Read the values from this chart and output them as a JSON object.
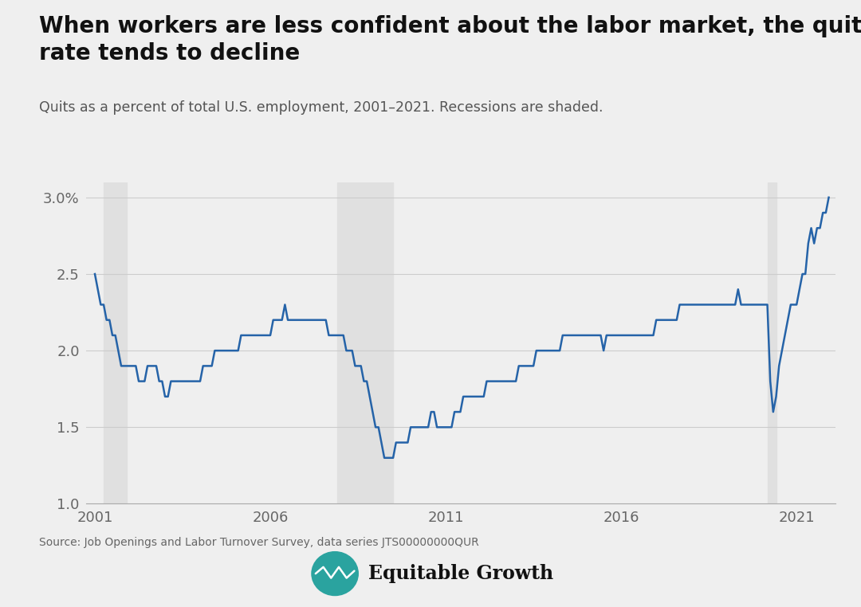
{
  "title": "When workers are less confident about the labor market, the quits\nrate tends to decline",
  "subtitle": "Quits as a percent of total U.S. employment, 2001–2021. Recessions are shaded.",
  "source": "Source: Job Openings and Labor Turnover Survey, data series JTS00000000QUR",
  "line_color": "#2563a8",
  "background_color": "#efefef",
  "recession_color": "#e0e0e0",
  "recessions": [
    {
      "start": 2001.25,
      "end": 2001.917
    },
    {
      "start": 2007.917,
      "end": 2009.5
    },
    {
      "start": 2020.167,
      "end": 2020.417
    }
  ],
  "ylim": [
    1.0,
    3.1
  ],
  "yticks": [
    1.0,
    1.5,
    2.0,
    2.5,
    3.0
  ],
  "ytick_labels": [
    "1.0",
    "1.5",
    "2.0",
    "2.5",
    "3.0%"
  ],
  "xlim": [
    2000.75,
    2022.1
  ],
  "xticks": [
    2001,
    2006,
    2011,
    2016,
    2021
  ],
  "data": {
    "dates": [
      2001.0,
      2001.083,
      2001.167,
      2001.25,
      2001.333,
      2001.417,
      2001.5,
      2001.583,
      2001.667,
      2001.75,
      2001.833,
      2001.917,
      2002.0,
      2002.083,
      2002.167,
      2002.25,
      2002.333,
      2002.417,
      2002.5,
      2002.583,
      2002.667,
      2002.75,
      2002.833,
      2002.917,
      2003.0,
      2003.083,
      2003.167,
      2003.25,
      2003.333,
      2003.417,
      2003.5,
      2003.583,
      2003.667,
      2003.75,
      2003.833,
      2003.917,
      2004.0,
      2004.083,
      2004.167,
      2004.25,
      2004.333,
      2004.417,
      2004.5,
      2004.583,
      2004.667,
      2004.75,
      2004.833,
      2004.917,
      2005.0,
      2005.083,
      2005.167,
      2005.25,
      2005.333,
      2005.417,
      2005.5,
      2005.583,
      2005.667,
      2005.75,
      2005.833,
      2005.917,
      2006.0,
      2006.083,
      2006.167,
      2006.25,
      2006.333,
      2006.417,
      2006.5,
      2006.583,
      2006.667,
      2006.75,
      2006.833,
      2006.917,
      2007.0,
      2007.083,
      2007.167,
      2007.25,
      2007.333,
      2007.417,
      2007.5,
      2007.583,
      2007.667,
      2007.75,
      2007.833,
      2007.917,
      2008.0,
      2008.083,
      2008.167,
      2008.25,
      2008.333,
      2008.417,
      2008.5,
      2008.583,
      2008.667,
      2008.75,
      2008.833,
      2008.917,
      2009.0,
      2009.083,
      2009.167,
      2009.25,
      2009.333,
      2009.417,
      2009.5,
      2009.583,
      2009.667,
      2009.75,
      2009.833,
      2009.917,
      2010.0,
      2010.083,
      2010.167,
      2010.25,
      2010.333,
      2010.417,
      2010.5,
      2010.583,
      2010.667,
      2010.75,
      2010.833,
      2010.917,
      2011.0,
      2011.083,
      2011.167,
      2011.25,
      2011.333,
      2011.417,
      2011.5,
      2011.583,
      2011.667,
      2011.75,
      2011.833,
      2011.917,
      2012.0,
      2012.083,
      2012.167,
      2012.25,
      2012.333,
      2012.417,
      2012.5,
      2012.583,
      2012.667,
      2012.75,
      2012.833,
      2012.917,
      2013.0,
      2013.083,
      2013.167,
      2013.25,
      2013.333,
      2013.417,
      2013.5,
      2013.583,
      2013.667,
      2013.75,
      2013.833,
      2013.917,
      2014.0,
      2014.083,
      2014.167,
      2014.25,
      2014.333,
      2014.417,
      2014.5,
      2014.583,
      2014.667,
      2014.75,
      2014.833,
      2014.917,
      2015.0,
      2015.083,
      2015.167,
      2015.25,
      2015.333,
      2015.417,
      2015.5,
      2015.583,
      2015.667,
      2015.75,
      2015.833,
      2015.917,
      2016.0,
      2016.083,
      2016.167,
      2016.25,
      2016.333,
      2016.417,
      2016.5,
      2016.583,
      2016.667,
      2016.75,
      2016.833,
      2016.917,
      2017.0,
      2017.083,
      2017.167,
      2017.25,
      2017.333,
      2017.417,
      2017.5,
      2017.583,
      2017.667,
      2017.75,
      2017.833,
      2017.917,
      2018.0,
      2018.083,
      2018.167,
      2018.25,
      2018.333,
      2018.417,
      2018.5,
      2018.583,
      2018.667,
      2018.75,
      2018.833,
      2018.917,
      2019.0,
      2019.083,
      2019.167,
      2019.25,
      2019.333,
      2019.417,
      2019.5,
      2019.583,
      2019.667,
      2019.75,
      2019.833,
      2019.917,
      2020.0,
      2020.083,
      2020.167,
      2020.25,
      2020.333,
      2020.417,
      2020.5,
      2020.583,
      2020.667,
      2020.75,
      2020.833,
      2020.917,
      2021.0,
      2021.083,
      2021.167,
      2021.25,
      2021.333,
      2021.417,
      2021.5,
      2021.583,
      2021.667,
      2021.75,
      2021.833,
      2021.917
    ],
    "values": [
      2.5,
      2.4,
      2.3,
      2.3,
      2.2,
      2.2,
      2.1,
      2.1,
      2.0,
      1.9,
      1.9,
      1.9,
      1.9,
      1.9,
      1.9,
      1.8,
      1.8,
      1.8,
      1.9,
      1.9,
      1.9,
      1.9,
      1.8,
      1.8,
      1.7,
      1.7,
      1.8,
      1.8,
      1.8,
      1.8,
      1.8,
      1.8,
      1.8,
      1.8,
      1.8,
      1.8,
      1.8,
      1.9,
      1.9,
      1.9,
      1.9,
      2.0,
      2.0,
      2.0,
      2.0,
      2.0,
      2.0,
      2.0,
      2.0,
      2.0,
      2.1,
      2.1,
      2.1,
      2.1,
      2.1,
      2.1,
      2.1,
      2.1,
      2.1,
      2.1,
      2.1,
      2.2,
      2.2,
      2.2,
      2.2,
      2.3,
      2.2,
      2.2,
      2.2,
      2.2,
      2.2,
      2.2,
      2.2,
      2.2,
      2.2,
      2.2,
      2.2,
      2.2,
      2.2,
      2.2,
      2.1,
      2.1,
      2.1,
      2.1,
      2.1,
      2.1,
      2.0,
      2.0,
      2.0,
      1.9,
      1.9,
      1.9,
      1.8,
      1.8,
      1.7,
      1.6,
      1.5,
      1.5,
      1.4,
      1.3,
      1.3,
      1.3,
      1.3,
      1.4,
      1.4,
      1.4,
      1.4,
      1.4,
      1.5,
      1.5,
      1.5,
      1.5,
      1.5,
      1.5,
      1.5,
      1.6,
      1.6,
      1.5,
      1.5,
      1.5,
      1.5,
      1.5,
      1.5,
      1.6,
      1.6,
      1.6,
      1.7,
      1.7,
      1.7,
      1.7,
      1.7,
      1.7,
      1.7,
      1.7,
      1.8,
      1.8,
      1.8,
      1.8,
      1.8,
      1.8,
      1.8,
      1.8,
      1.8,
      1.8,
      1.8,
      1.9,
      1.9,
      1.9,
      1.9,
      1.9,
      1.9,
      2.0,
      2.0,
      2.0,
      2.0,
      2.0,
      2.0,
      2.0,
      2.0,
      2.0,
      2.1,
      2.1,
      2.1,
      2.1,
      2.1,
      2.1,
      2.1,
      2.1,
      2.1,
      2.1,
      2.1,
      2.1,
      2.1,
      2.1,
      2.0,
      2.1,
      2.1,
      2.1,
      2.1,
      2.1,
      2.1,
      2.1,
      2.1,
      2.1,
      2.1,
      2.1,
      2.1,
      2.1,
      2.1,
      2.1,
      2.1,
      2.1,
      2.2,
      2.2,
      2.2,
      2.2,
      2.2,
      2.2,
      2.2,
      2.2,
      2.3,
      2.3,
      2.3,
      2.3,
      2.3,
      2.3,
      2.3,
      2.3,
      2.3,
      2.3,
      2.3,
      2.3,
      2.3,
      2.3,
      2.3,
      2.3,
      2.3,
      2.3,
      2.3,
      2.3,
      2.4,
      2.3,
      2.3,
      2.3,
      2.3,
      2.3,
      2.3,
      2.3,
      2.3,
      2.3,
      2.3,
      1.8,
      1.6,
      1.7,
      1.9,
      2.0,
      2.1,
      2.2,
      2.3,
      2.3,
      2.3,
      2.4,
      2.5,
      2.5,
      2.7,
      2.8,
      2.7,
      2.8,
      2.8,
      2.9,
      2.9,
      3.0
    ]
  }
}
